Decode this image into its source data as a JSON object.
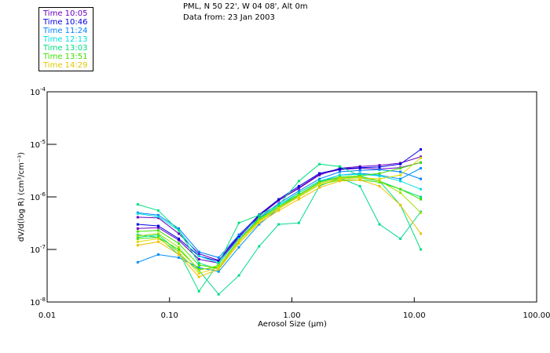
{
  "header": {
    "line1": "PML, N 50 22', W 04 08', Alt 0m",
    "line2": "Data from: 23 Jan 2003"
  },
  "legend": [
    {
      "label": "Time 10:05",
      "color": "#6a00c0"
    },
    {
      "label": "Time 10:46",
      "color": "#0000e0"
    },
    {
      "label": "Time 11:24",
      "color": "#0080ff"
    },
    {
      "label": "Time 12:13",
      "color": "#00e0e0"
    },
    {
      "label": "Time 13:03",
      "color": "#00e080"
    },
    {
      "label": "Time 13:51",
      "color": "#40e000"
    },
    {
      "label": "Time 14:29",
      "color": "#e0c800"
    }
  ],
  "chart_data": {
    "type": "line",
    "title": "PML, N 50 22', W 04 08', Alt 0m",
    "subtitle": "Data from: 23 Jan 2003",
    "xlabel": "Aerosol Size (µm)",
    "ylabel": "dV/d(log R) (cm³/cm⁻³)",
    "xscale": "log",
    "yscale": "log",
    "xlim": [
      0.01,
      100
    ],
    "ylim": [
      1e-08,
      0.0001
    ],
    "xticks": [
      {
        "value": 0.01,
        "label": "0.01"
      },
      {
        "value": 0.1,
        "label": "0.10"
      },
      {
        "value": 1,
        "label": "1.00"
      },
      {
        "value": 10,
        "label": "10.00"
      },
      {
        "value": 100,
        "label": "100.00"
      }
    ],
    "yticks": [
      {
        "value": 0.0001,
        "base": "10",
        "exp": "-4"
      },
      {
        "value": 1e-05,
        "base": "10",
        "exp": "-5"
      },
      {
        "value": 1e-06,
        "base": "10",
        "exp": "-6"
      },
      {
        "value": 1e-07,
        "base": "10",
        "exp": "-7"
      },
      {
        "value": 1e-08,
        "base": "10",
        "exp": "-8"
      }
    ],
    "legend_position": "top-left",
    "x": [
      0.055,
      0.081,
      0.119,
      0.174,
      0.252,
      0.369,
      0.54,
      0.78,
      1.14,
      1.68,
      2.46,
      3.6,
      5.2,
      7.7,
      11.3
    ],
    "series": [
      {
        "name": "Time 10:05",
        "color": "#6a00c0",
        "values": [
          4.1e-07,
          4e-07,
          2e-07,
          8.3e-08,
          6.2e-08,
          1.9e-07,
          4.4e-07,
          8.7e-07,
          1.45e-06,
          2.6e-06,
          3.5e-06,
          3.8e-06,
          4e-06,
          4.4e-06,
          5.8e-06
        ]
      },
      {
        "name": "Time 10:05",
        "color": "#6a00c0",
        "values": [
          2.5e-07,
          2.6e-07,
          1.5e-07,
          6.5e-08,
          5.5e-08,
          1.7e-07,
          4.3e-07,
          8.5e-07,
          1.5e-06,
          2.7e-06,
          3.3e-06,
          3.5e-06,
          3.4e-06,
          3.6e-06,
          4.5e-06
        ]
      },
      {
        "name": "Time 10:46",
        "color": "#0000e0",
        "values": [
          3e-07,
          2.8e-07,
          1.6e-07,
          7.5e-08,
          6e-08,
          1.8e-07,
          4.6e-07,
          9e-07,
          1.6e-06,
          2.8e-06,
          3.4e-06,
          3.6e-06,
          3.7e-06,
          4.2e-06,
          8e-06
        ]
      },
      {
        "name": "Time 11:24",
        "color": "#0080ff",
        "values": [
          5e-07,
          4.5e-07,
          2.5e-07,
          9e-08,
          7e-08,
          1.9e-07,
          4e-07,
          7.5e-07,
          1.3e-06,
          2.2e-06,
          3e-06,
          3.2e-06,
          3.3e-06,
          3e-06,
          2.2e-06
        ]
      },
      {
        "name": "Time 11:24",
        "color": "#0090ff",
        "values": [
          5.7e-08,
          8e-08,
          7e-08,
          4.5e-08,
          3.8e-08,
          1.1e-07,
          3e-07,
          6e-07,
          1.1e-06,
          1.9e-06,
          2.6e-06,
          2.8e-06,
          2.6e-06,
          2.2e-06,
          3.5e-06
        ]
      },
      {
        "name": "Time 12:13",
        "color": "#00e0e0",
        "values": [
          4.8e-07,
          4.2e-07,
          2.3e-07,
          7.5e-08,
          5.5e-08,
          1.6e-07,
          3.8e-07,
          7e-07,
          1.2e-06,
          2e-06,
          2.6e-06,
          2.7e-06,
          2.5e-06,
          2e-06,
          1.4e-06
        ]
      },
      {
        "name": "Time 13:03",
        "color": "#00e080",
        "values": [
          7.2e-07,
          5.5e-07,
          2.3e-07,
          5.5e-08,
          4.2e-08,
          1.5e-07,
          4e-07,
          6.5e-07,
          1.2e-06,
          2e-06,
          2.3e-06,
          2.3e-06,
          2e-06,
          1.4e-06,
          1e-06
        ]
      },
      {
        "name": "Time 13:03",
        "color": "#00e080",
        "values": [
          1.7e-07,
          1.9e-07,
          9e-08,
          1.6e-08,
          5.5e-08,
          3.2e-07,
          4.5e-07,
          7e-07,
          2e-06,
          4.2e-06,
          3.8e-06,
          2.5e-06,
          2e-06,
          7e-07,
          1e-07
        ]
      },
      {
        "name": "Time 13:03",
        "color": "#00d890",
        "values": [
          1.9e-07,
          1.7e-07,
          8e-08,
          4e-08,
          1.4e-08,
          3.2e-08,
          1.15e-07,
          3e-07,
          3.2e-07,
          1.6e-06,
          2.3e-06,
          1.6e-06,
          3e-07,
          1.6e-07,
          5.2e-07
        ]
      },
      {
        "name": "Time 13:51",
        "color": "#40e000",
        "values": [
          2.2e-07,
          2.3e-07,
          1.3e-07,
          5e-08,
          4.5e-08,
          1.4e-07,
          3.5e-07,
          6e-07,
          1e-06,
          1.7e-06,
          2.1e-06,
          2.1e-06,
          1.9e-06,
          1.4e-06,
          9e-07
        ]
      },
      {
        "name": "Time 13:51",
        "color": "#40e000",
        "values": [
          1.6e-07,
          1.7e-07,
          1e-07,
          4.2e-08,
          4.5e-08,
          1.5e-07,
          3.8e-07,
          6.5e-07,
          1.1e-06,
          1.9e-06,
          2.4e-06,
          2.5e-06,
          2.8e-06,
          3.5e-06,
          4.5e-06
        ]
      },
      {
        "name": "Time 13:51",
        "color": "#a0e000",
        "values": [
          1.8e-07,
          2e-07,
          1.1e-07,
          4e-08,
          5e-08,
          1.5e-07,
          3.6e-07,
          6.2e-07,
          1.05e-06,
          1.8e-06,
          2.3e-06,
          2.4e-06,
          2e-06,
          1.2e-06,
          5e-07
        ]
      },
      {
        "name": "Time 14:29",
        "color": "#f0c000",
        "values": [
          1.2e-07,
          1.4e-07,
          8e-08,
          3e-08,
          4.2e-08,
          1.3e-07,
          3.2e-07,
          5.5e-07,
          9e-07,
          1.5e-06,
          2e-06,
          2.1e-06,
          1.6e-06,
          7e-07,
          2e-07
        ]
      },
      {
        "name": "Time 14:29",
        "color": "#e0d800",
        "values": [
          1.4e-07,
          1.6e-07,
          9e-08,
          3.5e-08,
          4.5e-08,
          1.4e-07,
          3.4e-07,
          6e-07,
          1e-06,
          1.7e-06,
          2.2e-06,
          2.3e-06,
          2.2e-06,
          2.6e-06,
          5.5e-06
        ]
      }
    ]
  }
}
